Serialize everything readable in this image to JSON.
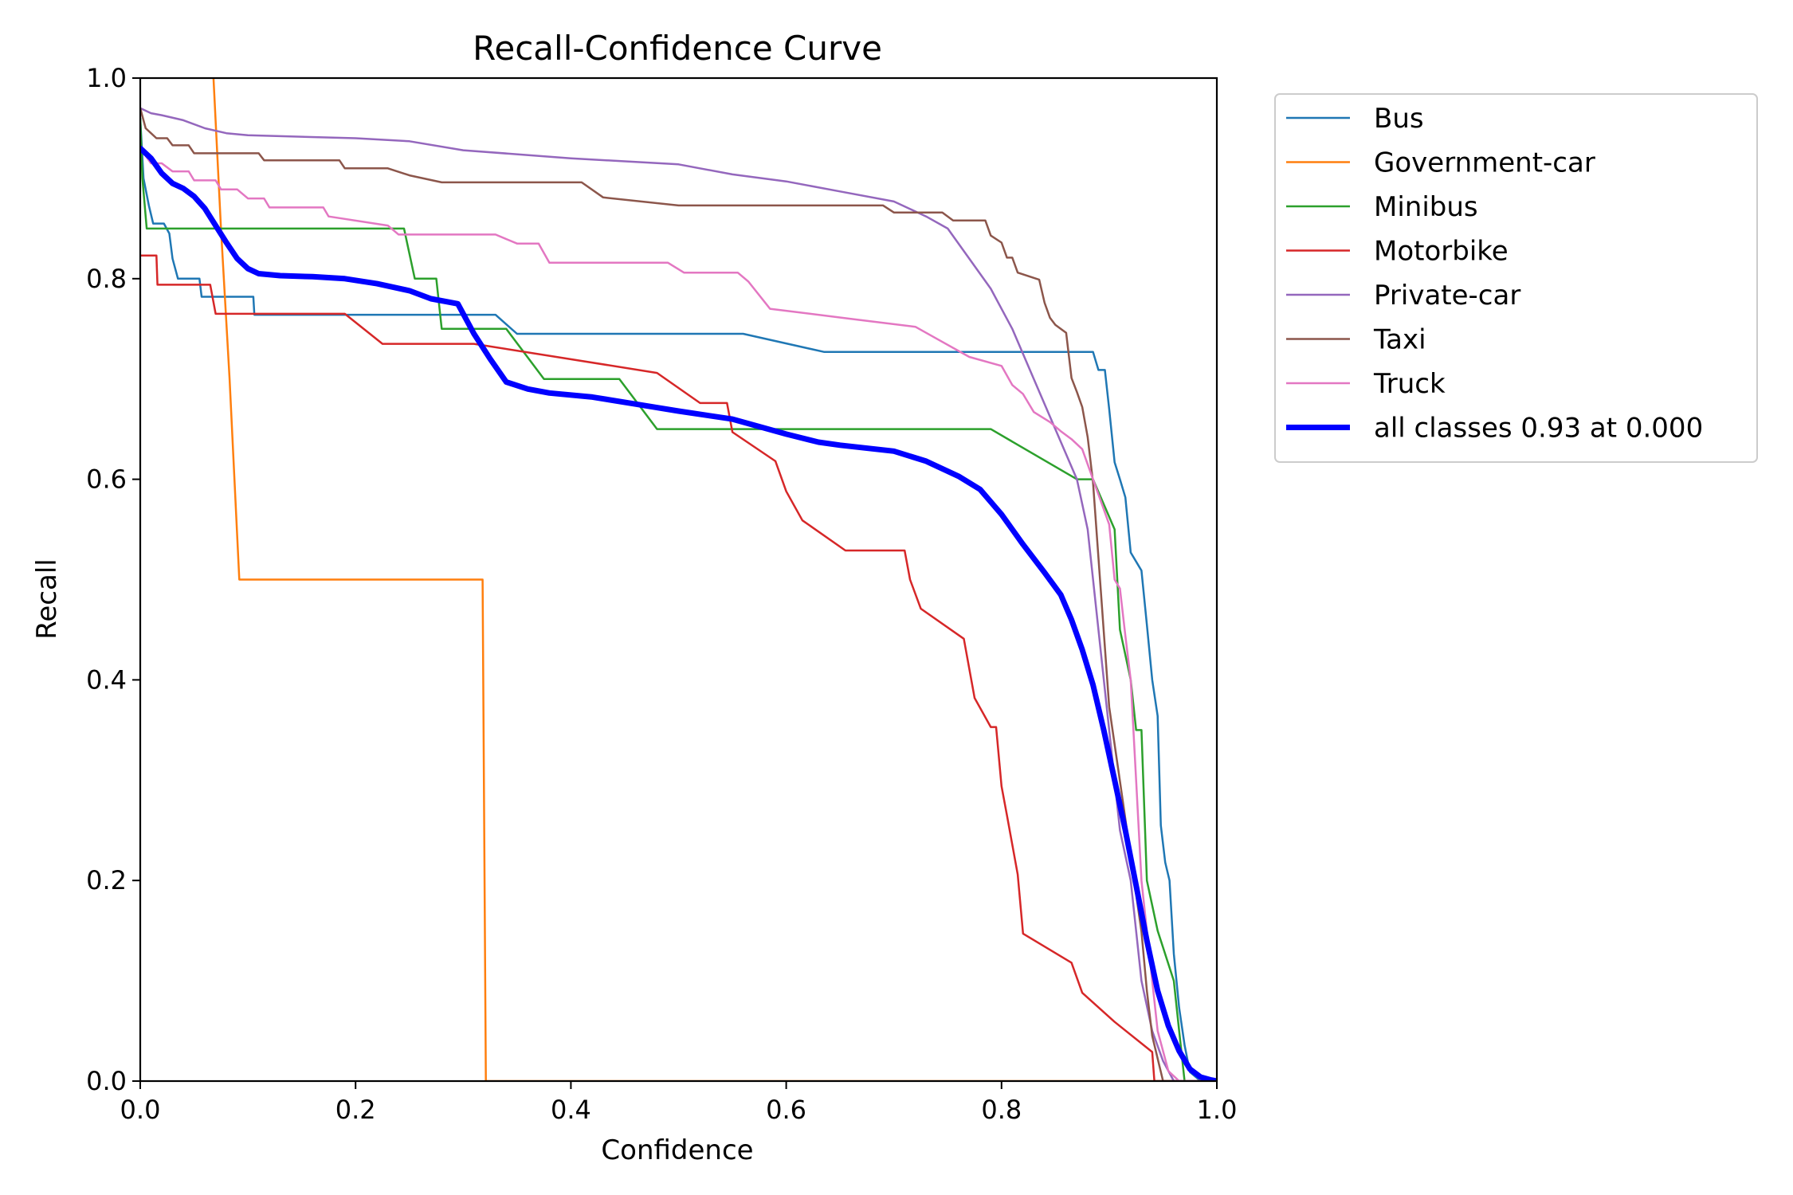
{
  "chart_data": {
    "type": "line",
    "title": "Recall-Confidence Curve",
    "xlabel": "Confidence",
    "ylabel": "Recall",
    "xlim": [
      0,
      1
    ],
    "ylim": [
      0,
      1
    ],
    "x_ticks": [
      "0.0",
      "0.2",
      "0.4",
      "0.6",
      "0.8",
      "1.0"
    ],
    "y_ticks": [
      "0.0",
      "0.2",
      "0.4",
      "0.6",
      "0.8",
      "1.0"
    ],
    "grid": false,
    "legend_position": "outside-top-right",
    "series": [
      {
        "name": "Bus",
        "color": "#1f77b4",
        "width": 2.5,
        "points": [
          [
            0,
            0.96
          ],
          [
            0.003,
            0.9
          ],
          [
            0.008,
            0.873
          ],
          [
            0.012,
            0.855
          ],
          [
            0.022,
            0.855
          ],
          [
            0.027,
            0.845
          ],
          [
            0.03,
            0.82
          ],
          [
            0.035,
            0.8
          ],
          [
            0.055,
            0.8
          ],
          [
            0.057,
            0.782
          ],
          [
            0.085,
            0.782
          ],
          [
            0.105,
            0.782
          ],
          [
            0.106,
            0.764
          ],
          [
            0.22,
            0.764
          ],
          [
            0.33,
            0.764
          ],
          [
            0.35,
            0.745
          ],
          [
            0.56,
            0.745
          ],
          [
            0.635,
            0.727
          ],
          [
            0.885,
            0.727
          ],
          [
            0.89,
            0.709
          ],
          [
            0.896,
            0.709
          ],
          [
            0.9,
            0.67
          ],
          [
            0.905,
            0.617
          ],
          [
            0.91,
            0.6
          ],
          [
            0.915,
            0.582
          ],
          [
            0.92,
            0.527
          ],
          [
            0.93,
            0.509
          ],
          [
            0.935,
            0.455
          ],
          [
            0.94,
            0.4
          ],
          [
            0.945,
            0.364
          ],
          [
            0.948,
            0.255
          ],
          [
            0.952,
            0.218
          ],
          [
            0.956,
            0.2
          ],
          [
            0.96,
            0.127
          ],
          [
            0.965,
            0.073
          ],
          [
            0.97,
            0.036
          ],
          [
            0.975,
            0.009
          ],
          [
            0.985,
            0.0
          ],
          [
            1,
            0.0
          ]
        ]
      },
      {
        "name": "Government-car",
        "color": "#ff7f0e",
        "width": 2.5,
        "points": [
          [
            0.068,
            1.0
          ],
          [
            0.075,
            0.85
          ],
          [
            0.083,
            0.7
          ],
          [
            0.092,
            0.5
          ],
          [
            0.318,
            0.5
          ],
          [
            0.321,
            0.0
          ],
          [
            1,
            0.0
          ]
        ]
      },
      {
        "name": "Minibus",
        "color": "#2ca02c",
        "width": 2.5,
        "points": [
          [
            0,
            0.96
          ],
          [
            0.002,
            0.9
          ],
          [
            0.006,
            0.85
          ],
          [
            0.245,
            0.85
          ],
          [
            0.255,
            0.8
          ],
          [
            0.275,
            0.8
          ],
          [
            0.28,
            0.75
          ],
          [
            0.34,
            0.75
          ],
          [
            0.375,
            0.7
          ],
          [
            0.445,
            0.7
          ],
          [
            0.48,
            0.65
          ],
          [
            0.79,
            0.65
          ],
          [
            0.87,
            0.6
          ],
          [
            0.885,
            0.6
          ],
          [
            0.905,
            0.55
          ],
          [
            0.91,
            0.45
          ],
          [
            0.92,
            0.4
          ],
          [
            0.925,
            0.35
          ],
          [
            0.93,
            0.35
          ],
          [
            0.935,
            0.2
          ],
          [
            0.945,
            0.15
          ],
          [
            0.96,
            0.1
          ],
          [
            0.965,
            0.05
          ],
          [
            0.97,
            0.0
          ],
          [
            1,
            0.0
          ]
        ]
      },
      {
        "name": "Motorbike",
        "color": "#d62728",
        "width": 2.5,
        "points": [
          [
            0,
            0.823
          ],
          [
            0.015,
            0.823
          ],
          [
            0.016,
            0.794
          ],
          [
            0.065,
            0.794
          ],
          [
            0.07,
            0.765
          ],
          [
            0.19,
            0.765
          ],
          [
            0.225,
            0.735
          ],
          [
            0.31,
            0.735
          ],
          [
            0.48,
            0.706
          ],
          [
            0.52,
            0.676
          ],
          [
            0.545,
            0.676
          ],
          [
            0.55,
            0.647
          ],
          [
            0.59,
            0.618
          ],
          [
            0.6,
            0.588
          ],
          [
            0.615,
            0.559
          ],
          [
            0.655,
            0.529
          ],
          [
            0.71,
            0.529
          ],
          [
            0.715,
            0.5
          ],
          [
            0.725,
            0.471
          ],
          [
            0.765,
            0.441
          ],
          [
            0.775,
            0.382
          ],
          [
            0.79,
            0.353
          ],
          [
            0.795,
            0.353
          ],
          [
            0.8,
            0.294
          ],
          [
            0.805,
            0.265
          ],
          [
            0.815,
            0.206
          ],
          [
            0.82,
            0.147
          ],
          [
            0.865,
            0.118
          ],
          [
            0.875,
            0.088
          ],
          [
            0.905,
            0.059
          ],
          [
            0.94,
            0.029
          ],
          [
            0.942,
            0.0
          ],
          [
            1,
            0.0
          ]
        ]
      },
      {
        "name": "Private-car",
        "color": "#9467bd",
        "width": 2.5,
        "points": [
          [
            0,
            0.97
          ],
          [
            0.01,
            0.965
          ],
          [
            0.02,
            0.963
          ],
          [
            0.04,
            0.958
          ],
          [
            0.06,
            0.95
          ],
          [
            0.08,
            0.945
          ],
          [
            0.1,
            0.943
          ],
          [
            0.2,
            0.94
          ],
          [
            0.25,
            0.937
          ],
          [
            0.3,
            0.928
          ],
          [
            0.4,
            0.92
          ],
          [
            0.5,
            0.914
          ],
          [
            0.55,
            0.904
          ],
          [
            0.6,
            0.897
          ],
          [
            0.65,
            0.887
          ],
          [
            0.7,
            0.877
          ],
          [
            0.73,
            0.862
          ],
          [
            0.75,
            0.85
          ],
          [
            0.77,
            0.82
          ],
          [
            0.79,
            0.79
          ],
          [
            0.81,
            0.75
          ],
          [
            0.83,
            0.7
          ],
          [
            0.85,
            0.65
          ],
          [
            0.87,
            0.6
          ],
          [
            0.88,
            0.55
          ],
          [
            0.89,
            0.45
          ],
          [
            0.9,
            0.35
          ],
          [
            0.91,
            0.25
          ],
          [
            0.92,
            0.2
          ],
          [
            0.93,
            0.1
          ],
          [
            0.94,
            0.05
          ],
          [
            0.95,
            0.02
          ],
          [
            0.96,
            0.0
          ],
          [
            1,
            0.0
          ]
        ]
      },
      {
        "name": "Taxi",
        "color": "#8c564b",
        "width": 2.5,
        "points": [
          [
            0,
            0.97
          ],
          [
            0.005,
            0.95
          ],
          [
            0.01,
            0.945
          ],
          [
            0.015,
            0.94
          ],
          [
            0.025,
            0.94
          ],
          [
            0.03,
            0.933
          ],
          [
            0.045,
            0.933
          ],
          [
            0.05,
            0.925
          ],
          [
            0.11,
            0.925
          ],
          [
            0.115,
            0.918
          ],
          [
            0.185,
            0.918
          ],
          [
            0.19,
            0.91
          ],
          [
            0.23,
            0.91
          ],
          [
            0.25,
            0.903
          ],
          [
            0.28,
            0.896
          ],
          [
            0.41,
            0.896
          ],
          [
            0.43,
            0.881
          ],
          [
            0.5,
            0.873
          ],
          [
            0.69,
            0.873
          ],
          [
            0.7,
            0.866
          ],
          [
            0.745,
            0.866
          ],
          [
            0.755,
            0.858
          ],
          [
            0.785,
            0.858
          ],
          [
            0.79,
            0.843
          ],
          [
            0.8,
            0.836
          ],
          [
            0.805,
            0.821
          ],
          [
            0.81,
            0.821
          ],
          [
            0.815,
            0.806
          ],
          [
            0.835,
            0.799
          ],
          [
            0.84,
            0.776
          ],
          [
            0.845,
            0.761
          ],
          [
            0.85,
            0.754
          ],
          [
            0.86,
            0.746
          ],
          [
            0.865,
            0.701
          ],
          [
            0.87,
            0.687
          ],
          [
            0.875,
            0.672
          ],
          [
            0.88,
            0.642
          ],
          [
            0.885,
            0.597
          ],
          [
            0.89,
            0.522
          ],
          [
            0.895,
            0.448
          ],
          [
            0.9,
            0.373
          ],
          [
            0.91,
            0.299
          ],
          [
            0.92,
            0.224
          ],
          [
            0.93,
            0.149
          ],
          [
            0.935,
            0.09
          ],
          [
            0.94,
            0.045
          ],
          [
            0.95,
            0.0
          ],
          [
            1,
            0.0
          ]
        ]
      },
      {
        "name": "Truck",
        "color": "#e377c2",
        "width": 2.5,
        "points": [
          [
            0,
            0.93
          ],
          [
            0.01,
            0.915
          ],
          [
            0.02,
            0.915
          ],
          [
            0.03,
            0.907
          ],
          [
            0.045,
            0.907
          ],
          [
            0.05,
            0.898
          ],
          [
            0.07,
            0.898
          ],
          [
            0.075,
            0.889
          ],
          [
            0.09,
            0.889
          ],
          [
            0.1,
            0.88
          ],
          [
            0.115,
            0.88
          ],
          [
            0.12,
            0.871
          ],
          [
            0.17,
            0.871
          ],
          [
            0.175,
            0.862
          ],
          [
            0.23,
            0.853
          ],
          [
            0.24,
            0.844
          ],
          [
            0.33,
            0.844
          ],
          [
            0.35,
            0.835
          ],
          [
            0.37,
            0.835
          ],
          [
            0.38,
            0.816
          ],
          [
            0.49,
            0.816
          ],
          [
            0.505,
            0.806
          ],
          [
            0.555,
            0.806
          ],
          [
            0.565,
            0.797
          ],
          [
            0.585,
            0.77
          ],
          [
            0.66,
            0.76
          ],
          [
            0.72,
            0.752
          ],
          [
            0.74,
            0.74
          ],
          [
            0.77,
            0.722
          ],
          [
            0.8,
            0.713
          ],
          [
            0.81,
            0.694
          ],
          [
            0.82,
            0.685
          ],
          [
            0.83,
            0.667
          ],
          [
            0.845,
            0.657
          ],
          [
            0.855,
            0.648
          ],
          [
            0.865,
            0.64
          ],
          [
            0.875,
            0.63
          ],
          [
            0.885,
            0.6
          ],
          [
            0.9,
            0.555
          ],
          [
            0.905,
            0.5
          ],
          [
            0.91,
            0.491
          ],
          [
            0.915,
            0.444
          ],
          [
            0.92,
            0.4
          ],
          [
            0.925,
            0.3
          ],
          [
            0.93,
            0.2
          ],
          [
            0.94,
            0.1
          ],
          [
            0.945,
            0.05
          ],
          [
            0.955,
            0.01
          ],
          [
            0.965,
            0.0
          ],
          [
            1,
            0.0
          ]
        ]
      },
      {
        "name": "all classes 0.93 at 0.000",
        "color": "#0000ff",
        "width": 7,
        "points": [
          [
            0,
            0.93
          ],
          [
            0.01,
            0.92
          ],
          [
            0.02,
            0.905
          ],
          [
            0.03,
            0.895
          ],
          [
            0.04,
            0.89
          ],
          [
            0.05,
            0.882
          ],
          [
            0.06,
            0.87
          ],
          [
            0.07,
            0.853
          ],
          [
            0.08,
            0.836
          ],
          [
            0.09,
            0.82
          ],
          [
            0.1,
            0.81
          ],
          [
            0.11,
            0.805
          ],
          [
            0.13,
            0.803
          ],
          [
            0.16,
            0.802
          ],
          [
            0.19,
            0.8
          ],
          [
            0.22,
            0.795
          ],
          [
            0.25,
            0.788
          ],
          [
            0.27,
            0.78
          ],
          [
            0.295,
            0.775
          ],
          [
            0.31,
            0.745
          ],
          [
            0.325,
            0.72
          ],
          [
            0.34,
            0.697
          ],
          [
            0.36,
            0.69
          ],
          [
            0.38,
            0.686
          ],
          [
            0.42,
            0.682
          ],
          [
            0.46,
            0.675
          ],
          [
            0.5,
            0.668
          ],
          [
            0.55,
            0.66
          ],
          [
            0.6,
            0.645
          ],
          [
            0.63,
            0.637
          ],
          [
            0.65,
            0.634
          ],
          [
            0.7,
            0.628
          ],
          [
            0.73,
            0.618
          ],
          [
            0.76,
            0.603
          ],
          [
            0.78,
            0.59
          ],
          [
            0.8,
            0.565
          ],
          [
            0.82,
            0.535
          ],
          [
            0.84,
            0.507
          ],
          [
            0.855,
            0.485
          ],
          [
            0.865,
            0.46
          ],
          [
            0.875,
            0.43
          ],
          [
            0.885,
            0.395
          ],
          [
            0.895,
            0.35
          ],
          [
            0.905,
            0.3
          ],
          [
            0.915,
            0.25
          ],
          [
            0.925,
            0.195
          ],
          [
            0.935,
            0.14
          ],
          [
            0.945,
            0.09
          ],
          [
            0.955,
            0.055
          ],
          [
            0.965,
            0.03
          ],
          [
            0.975,
            0.012
          ],
          [
            0.985,
            0.004
          ],
          [
            0.995,
            0.001
          ],
          [
            1,
            0.0
          ]
        ]
      }
    ]
  }
}
